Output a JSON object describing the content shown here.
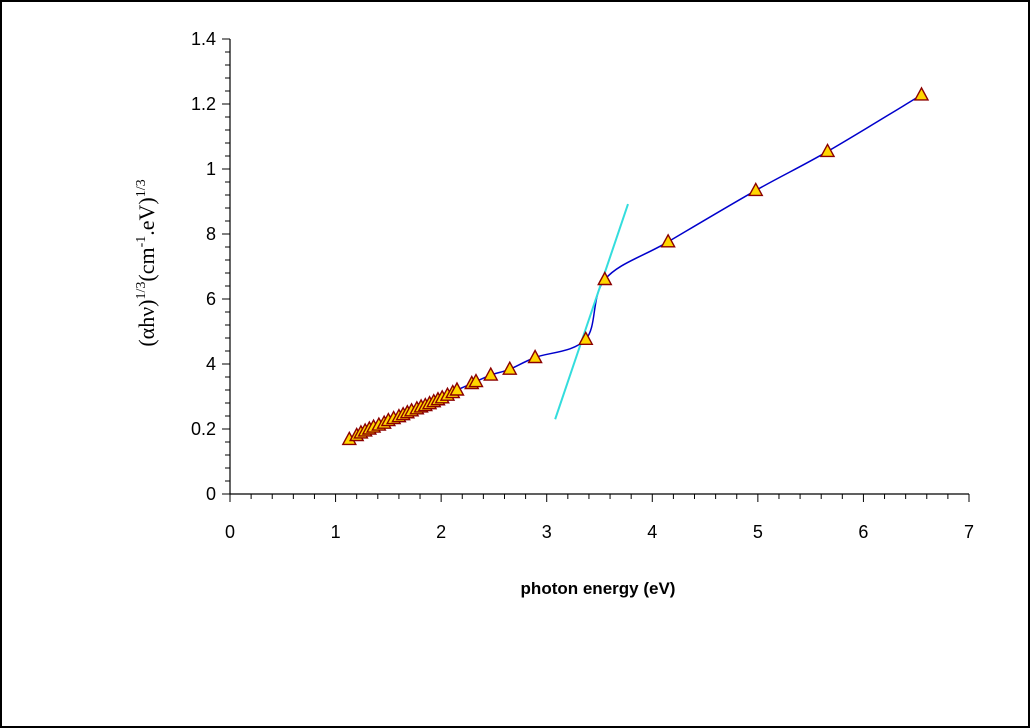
{
  "chart_data": {
    "type": "scatter",
    "xlabel": "photon energy (eV)",
    "ylabel": {
      "base": "(αhν)",
      "exp1": "1/3",
      "mid": "(cm",
      "exp2": "-1",
      "tail": ".eV)",
      "exp3": "1/3"
    },
    "x_ticks": [
      0,
      1,
      2,
      3,
      4,
      5,
      6,
      7
    ],
    "y_ticks": [
      {
        "value": 0,
        "label": "0"
      },
      {
        "value": 1,
        "label": "0.2"
      },
      {
        "value": 2,
        "label": "4"
      },
      {
        "value": 3,
        "label": "6"
      },
      {
        "value": 4,
        "label": "8"
      },
      {
        "value": 5,
        "label": "1"
      },
      {
        "value": 6,
        "label": "1.2"
      },
      {
        "value": 7,
        "label": "1.4"
      }
    ],
    "xlim": [
      0,
      7
    ],
    "ylim": [
      0,
      7
    ],
    "grid": false,
    "series": [
      {
        "marker": "triangle",
        "marker_fill": "#ffd700",
        "marker_stroke": "#8b0000",
        "line_color": "#0000cc",
        "points": [
          [
            1.13,
            0.84
          ],
          [
            1.2,
            0.9
          ],
          [
            1.24,
            0.94
          ],
          [
            1.28,
            0.97
          ],
          [
            1.32,
            1.0
          ],
          [
            1.36,
            1.03
          ],
          [
            1.41,
            1.06
          ],
          [
            1.46,
            1.09
          ],
          [
            1.5,
            1.13
          ],
          [
            1.55,
            1.16
          ],
          [
            1.6,
            1.19
          ],
          [
            1.64,
            1.22
          ],
          [
            1.68,
            1.25
          ],
          [
            1.72,
            1.28
          ],
          [
            1.77,
            1.31
          ],
          [
            1.81,
            1.34
          ],
          [
            1.85,
            1.36
          ],
          [
            1.89,
            1.39
          ],
          [
            1.93,
            1.42
          ],
          [
            1.97,
            1.45
          ],
          [
            2.01,
            1.48
          ],
          [
            2.06,
            1.52
          ],
          [
            2.11,
            1.56
          ],
          [
            2.15,
            1.6
          ],
          [
            2.29,
            1.7
          ],
          [
            2.33,
            1.73
          ],
          [
            2.47,
            1.83
          ],
          [
            2.65,
            1.92
          ],
          [
            2.89,
            2.1
          ],
          [
            3.37,
            2.38
          ],
          [
            3.55,
            3.3
          ],
          [
            4.15,
            3.88
          ],
          [
            4.98,
            4.67
          ],
          [
            5.66,
            5.27
          ],
          [
            6.55,
            6.14
          ]
        ]
      }
    ],
    "tangent_line": {
      "color": "#33dddd",
      "points": [
        [
          3.08,
          1.15
        ],
        [
          3.77,
          4.46
        ]
      ]
    }
  }
}
